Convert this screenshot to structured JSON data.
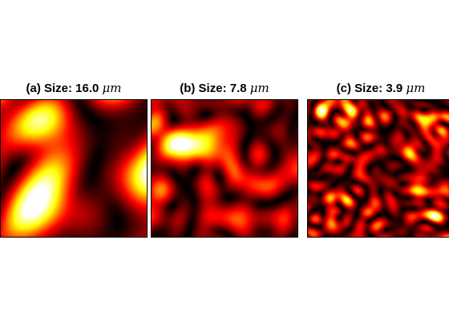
{
  "chart_data": [
    {
      "type": "heatmap",
      "panel": "a",
      "title": "(a) Size: 16.0 μm",
      "title_prefix": "(a) Size: 16.0 ",
      "title_unit": "μm",
      "colormap": "hot",
      "speckle_size_um": 16.0,
      "axes_visible": false,
      "grid": false,
      "legend": "none"
    },
    {
      "type": "heatmap",
      "panel": "b",
      "title": "(b) Size: 7.8 μm",
      "title_prefix": "(b) Size: 7.8 ",
      "title_unit": "μm",
      "colormap": "hot",
      "speckle_size_um": 7.8,
      "axes_visible": false,
      "grid": false,
      "legend": "none"
    },
    {
      "type": "heatmap",
      "panel": "c",
      "title": "(c) Size: 3.9 μm",
      "title_prefix": "(c) Size: 3.9 ",
      "title_unit": "μm",
      "colormap": "hot",
      "speckle_size_um": 3.9,
      "axes_visible": false,
      "grid": false,
      "legend": "none"
    }
  ]
}
